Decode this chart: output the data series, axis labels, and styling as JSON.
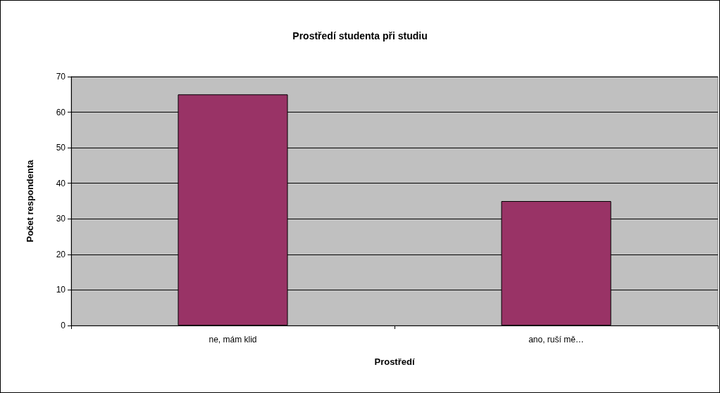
{
  "chart_data": {
    "type": "bar",
    "title": "Prostředí studenta při studiu",
    "xlabel": "Prostředí",
    "ylabel": "Počet respondenta",
    "categories": [
      "ne, mám klid",
      "ano, ruší mě…"
    ],
    "values": [
      65,
      35
    ],
    "color": "#993366",
    "ylim": [
      0,
      70
    ],
    "yticks": [
      0,
      10,
      20,
      30,
      40,
      50,
      60,
      70
    ],
    "grid": "y"
  }
}
